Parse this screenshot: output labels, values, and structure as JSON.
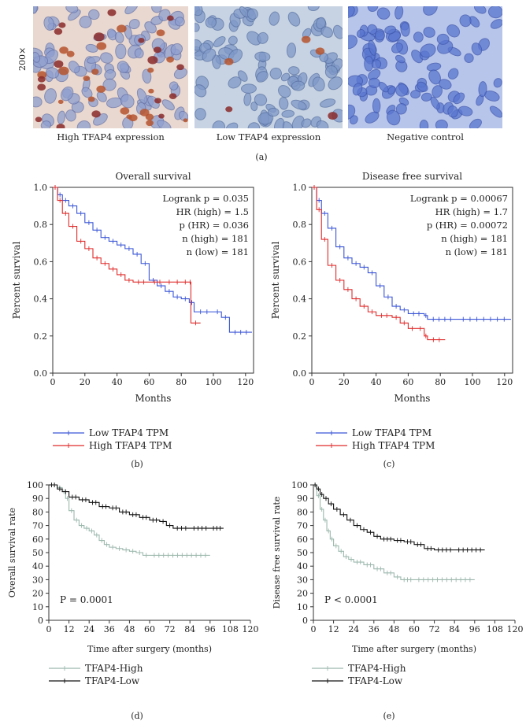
{
  "panel_a": {
    "magnification": "200×",
    "captions": [
      "High TFAP4 expression",
      "Low TFAP4 expression",
      "Negative control"
    ],
    "label": "(a)"
  },
  "labels": {
    "b": "(b)",
    "c": "(c)",
    "d": "(d)",
    "e": "(e)"
  },
  "colors": {
    "low": "#3a55d6",
    "high": "#e02a2a",
    "d_high": "#9cb8ad",
    "d_low": "#111111"
  },
  "chart_data": [
    {
      "id": "b",
      "type": "line",
      "title": "Overall survival",
      "xlabel": "Months",
      "ylabel": "Percent survival",
      "xlim": [
        0,
        125
      ],
      "ylim": [
        0,
        1.0
      ],
      "xticks": [
        0,
        20,
        40,
        60,
        80,
        100,
        120
      ],
      "yticks": [
        "0.0",
        "0.2",
        "0.4",
        "0.6",
        "0.8",
        "1.0"
      ],
      "stats": [
        "Logrank p = 0.035",
        "HR (high) = 1.5",
        "p (HR) = 0.036",
        "n (high) = 181",
        "n (low) = 181"
      ],
      "legend": [
        "Low TFAP4 TPM",
        "High TFAP4 TPM"
      ],
      "series": [
        {
          "name": "Low TFAP4 TPM",
          "color": "low",
          "points": [
            [
              0,
              1.0
            ],
            [
              3,
              0.96
            ],
            [
              6,
              0.93
            ],
            [
              10,
              0.9
            ],
            [
              15,
              0.86
            ],
            [
              20,
              0.81
            ],
            [
              25,
              0.77
            ],
            [
              30,
              0.73
            ],
            [
              35,
              0.71
            ],
            [
              40,
              0.69
            ],
            [
              45,
              0.67
            ],
            [
              50,
              0.64
            ],
            [
              55,
              0.59
            ],
            [
              60,
              0.5
            ],
            [
              65,
              0.47
            ],
            [
              70,
              0.44
            ],
            [
              75,
              0.41
            ],
            [
              80,
              0.4
            ],
            [
              85,
              0.38
            ],
            [
              88,
              0.33
            ],
            [
              100,
              0.33
            ],
            [
              105,
              0.3
            ],
            [
              110,
              0.22
            ],
            [
              124,
              0.22
            ]
          ]
        },
        {
          "name": "High TFAP4 TPM",
          "color": "high",
          "points": [
            [
              0,
              1.0
            ],
            [
              3,
              0.93
            ],
            [
              6,
              0.86
            ],
            [
              10,
              0.79
            ],
            [
              15,
              0.71
            ],
            [
              20,
              0.67
            ],
            [
              25,
              0.62
            ],
            [
              30,
              0.59
            ],
            [
              35,
              0.56
            ],
            [
              40,
              0.53
            ],
            [
              45,
              0.5
            ],
            [
              50,
              0.49
            ],
            [
              60,
              0.49
            ],
            [
              70,
              0.49
            ],
            [
              75,
              0.49
            ],
            [
              80,
              0.49
            ],
            [
              85,
              0.49
            ],
            [
              86,
              0.27
            ],
            [
              92,
              0.27
            ]
          ]
        }
      ]
    },
    {
      "id": "c",
      "type": "line",
      "title": "Disease free survival",
      "xlabel": "Months",
      "ylabel": "Percent survival",
      "xlim": [
        0,
        125
      ],
      "ylim": [
        0,
        1.0
      ],
      "xticks": [
        0,
        20,
        40,
        60,
        80,
        100,
        120
      ],
      "yticks": [
        "0.0",
        "0.2",
        "0.4",
        "0.6",
        "0.8",
        "1.0"
      ],
      "stats": [
        "Logrank p = 0.00067",
        "HR (high) = 1.7",
        "p (HR) = 0.00072",
        "n (high) = 181",
        "n (low) = 181"
      ],
      "legend": [
        "Low TFAP4 TPM",
        "High TFAP4 TPM"
      ],
      "series": [
        {
          "name": "Low TFAP4 TPM",
          "color": "low",
          "points": [
            [
              0,
              1.0
            ],
            [
              3,
              0.93
            ],
            [
              6,
              0.86
            ],
            [
              10,
              0.78
            ],
            [
              15,
              0.68
            ],
            [
              20,
              0.62
            ],
            [
              25,
              0.59
            ],
            [
              30,
              0.57
            ],
            [
              35,
              0.54
            ],
            [
              40,
              0.47
            ],
            [
              45,
              0.41
            ],
            [
              50,
              0.36
            ],
            [
              55,
              0.34
            ],
            [
              60,
              0.32
            ],
            [
              70,
              0.31
            ],
            [
              72,
              0.29
            ],
            [
              90,
              0.29
            ],
            [
              124,
              0.29
            ]
          ]
        },
        {
          "name": "High TFAP4 TPM",
          "color": "high",
          "points": [
            [
              0,
              1.0
            ],
            [
              3,
              0.88
            ],
            [
              6,
              0.72
            ],
            [
              10,
              0.58
            ],
            [
              15,
              0.5
            ],
            [
              20,
              0.45
            ],
            [
              25,
              0.4
            ],
            [
              30,
              0.36
            ],
            [
              35,
              0.33
            ],
            [
              40,
              0.31
            ],
            [
              50,
              0.3
            ],
            [
              55,
              0.27
            ],
            [
              60,
              0.24
            ],
            [
              65,
              0.24
            ],
            [
              70,
              0.2
            ],
            [
              72,
              0.18
            ],
            [
              83,
              0.18
            ]
          ]
        }
      ]
    },
    {
      "id": "d",
      "type": "line",
      "title": "",
      "xlabel": "Time after surgery (months)",
      "ylabel": "Overall survival rate",
      "xlim": [
        0,
        120
      ],
      "ylim": [
        0,
        100
      ],
      "xticks": [
        0,
        12,
        24,
        36,
        48,
        60,
        72,
        84,
        96,
        108,
        120
      ],
      "yticks": [
        "0",
        "10",
        "20",
        "30",
        "40",
        "50",
        "60",
        "70",
        "80",
        "90",
        "100"
      ],
      "stats": [
        "P = 0.0001"
      ],
      "legend": [
        "TFAP4-High",
        "TFAP4-Low"
      ],
      "series": [
        {
          "name": "TFAP4-High",
          "color": "d_high",
          "points": [
            [
              0,
              100
            ],
            [
              5,
              98
            ],
            [
              8,
              95
            ],
            [
              10,
              90
            ],
            [
              12,
              81
            ],
            [
              15,
              74
            ],
            [
              18,
              70
            ],
            [
              21,
              68
            ],
            [
              24,
              66
            ],
            [
              27,
              63
            ],
            [
              30,
              59
            ],
            [
              33,
              56
            ],
            [
              36,
              54
            ],
            [
              40,
              53
            ],
            [
              44,
              52
            ],
            [
              48,
              51
            ],
            [
              52,
              50
            ],
            [
              56,
              48
            ],
            [
              60,
              48
            ],
            [
              96,
              48
            ]
          ]
        },
        {
          "name": "TFAP4-Low",
          "color": "d_low",
          "points": [
            [
              0,
              100
            ],
            [
              5,
              97
            ],
            [
              8,
              95
            ],
            [
              12,
              91
            ],
            [
              18,
              89
            ],
            [
              24,
              87
            ],
            [
              30,
              84
            ],
            [
              36,
              83
            ],
            [
              42,
              80
            ],
            [
              48,
              78
            ],
            [
              54,
              76
            ],
            [
              60,
              74
            ],
            [
              66,
              73
            ],
            [
              70,
              70
            ],
            [
              74,
              68
            ],
            [
              84,
              68
            ],
            [
              96,
              68
            ],
            [
              104,
              68
            ]
          ]
        }
      ]
    },
    {
      "id": "e",
      "type": "line",
      "title": "",
      "xlabel": "Time after surgery (months)",
      "ylabel": "Disease free survival rate",
      "xlim": [
        0,
        120
      ],
      "ylim": [
        0,
        100
      ],
      "xticks": [
        0,
        12,
        24,
        36,
        48,
        60,
        72,
        84,
        96,
        108,
        120
      ],
      "yticks": [
        "0",
        "10",
        "20",
        "30",
        "40",
        "50",
        "60",
        "70",
        "80",
        "90",
        "100"
      ],
      "stats": [
        "P < 0.0001"
      ],
      "legend": [
        "TFAP4-High",
        "TFAP4-Low"
      ],
      "series": [
        {
          "name": "TFAP4-High",
          "color": "d_high",
          "points": [
            [
              0,
              100
            ],
            [
              2,
              92
            ],
            [
              4,
              82
            ],
            [
              6,
              74
            ],
            [
              8,
              66
            ],
            [
              10,
              60
            ],
            [
              12,
              55
            ],
            [
              15,
              51
            ],
            [
              18,
              47
            ],
            [
              21,
              45
            ],
            [
              24,
              43
            ],
            [
              30,
              41
            ],
            [
              36,
              38
            ],
            [
              42,
              35
            ],
            [
              48,
              32
            ],
            [
              52,
              30
            ],
            [
              60,
              30
            ],
            [
              96,
              30
            ]
          ]
        },
        {
          "name": "TFAP4-Low",
          "color": "d_low",
          "points": [
            [
              0,
              100
            ],
            [
              2,
              97
            ],
            [
              4,
              93
            ],
            [
              6,
              90
            ],
            [
              9,
              86
            ],
            [
              12,
              82
            ],
            [
              16,
              78
            ],
            [
              20,
              74
            ],
            [
              24,
              70
            ],
            [
              28,
              67
            ],
            [
              32,
              65
            ],
            [
              36,
              62
            ],
            [
              40,
              60
            ],
            [
              48,
              59
            ],
            [
              54,
              58
            ],
            [
              60,
              56
            ],
            [
              66,
              53
            ],
            [
              72,
              52
            ],
            [
              84,
              52
            ],
            [
              102,
              52
            ]
          ]
        }
      ]
    }
  ]
}
